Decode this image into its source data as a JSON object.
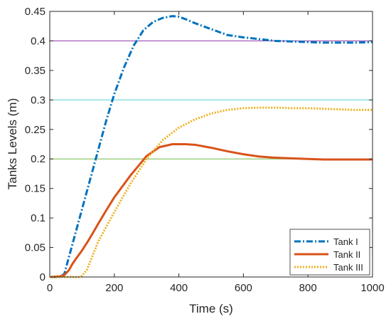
{
  "chart_data": {
    "type": "line",
    "title": "",
    "xlabel": "Time (s)",
    "ylabel": "Tanks Levels (m)",
    "xlim": [
      0,
      1000
    ],
    "ylim": [
      0,
      0.45
    ],
    "x_ticks": [
      0,
      200,
      400,
      600,
      800,
      1000
    ],
    "y_ticks": [
      0,
      0.05,
      0.1,
      0.15,
      0.2,
      0.25,
      0.3,
      0.35,
      0.4,
      0.45
    ],
    "grid": false,
    "box": true,
    "legend_position": "bottom-right",
    "reference_lines": [
      {
        "y": 0.4,
        "color": "#9b4fb1"
      },
      {
        "y": 0.3,
        "color": "#6fd4d8"
      },
      {
        "y": 0.2,
        "color": "#8fc66a"
      }
    ],
    "series": [
      {
        "name": "Tank I",
        "color": "#0072bd",
        "style": "dashdot",
        "x": [
          0,
          30,
          45,
          60,
          80,
          100,
          120,
          150,
          175,
          200,
          230,
          260,
          290,
          320,
          350,
          380,
          400,
          420,
          450,
          500,
          550,
          600,
          650,
          700,
          750,
          800,
          850,
          900,
          950,
          1000
        ],
        "y": [
          0.0,
          0.0,
          0.005,
          0.035,
          0.075,
          0.115,
          0.155,
          0.215,
          0.265,
          0.31,
          0.355,
          0.392,
          0.418,
          0.432,
          0.439,
          0.442,
          0.441,
          0.437,
          0.43,
          0.42,
          0.41,
          0.406,
          0.403,
          0.4,
          0.399,
          0.398,
          0.397,
          0.397,
          0.397,
          0.398
        ]
      },
      {
        "name": "Tank II",
        "color": "#d95319",
        "style": "solid",
        "x": [
          0,
          30,
          45,
          60,
          70,
          80,
          100,
          120,
          150,
          175,
          200,
          250,
          300,
          340,
          380,
          420,
          450,
          500,
          550,
          600,
          650,
          700,
          750,
          800,
          850,
          900,
          950,
          1000
        ],
        "y": [
          0.0,
          0.001,
          0.003,
          0.012,
          0.022,
          0.03,
          0.045,
          0.062,
          0.09,
          0.113,
          0.135,
          0.172,
          0.205,
          0.22,
          0.225,
          0.225,
          0.224,
          0.219,
          0.213,
          0.208,
          0.204,
          0.202,
          0.201,
          0.2,
          0.199,
          0.199,
          0.199,
          0.199
        ]
      },
      {
        "name": "Tank III",
        "color": "#edb120",
        "style": "dotted",
        "x": [
          0,
          60,
          90,
          100,
          115,
          150,
          200,
          250,
          300,
          350,
          400,
          450,
          500,
          550,
          600,
          650,
          700,
          750,
          800,
          850,
          900,
          950,
          1000
        ],
        "y": [
          0.0,
          0.0,
          0.0,
          0.002,
          0.012,
          0.06,
          0.11,
          0.158,
          0.2,
          0.232,
          0.253,
          0.267,
          0.277,
          0.283,
          0.286,
          0.287,
          0.287,
          0.286,
          0.286,
          0.285,
          0.284,
          0.283,
          0.283
        ]
      }
    ]
  }
}
